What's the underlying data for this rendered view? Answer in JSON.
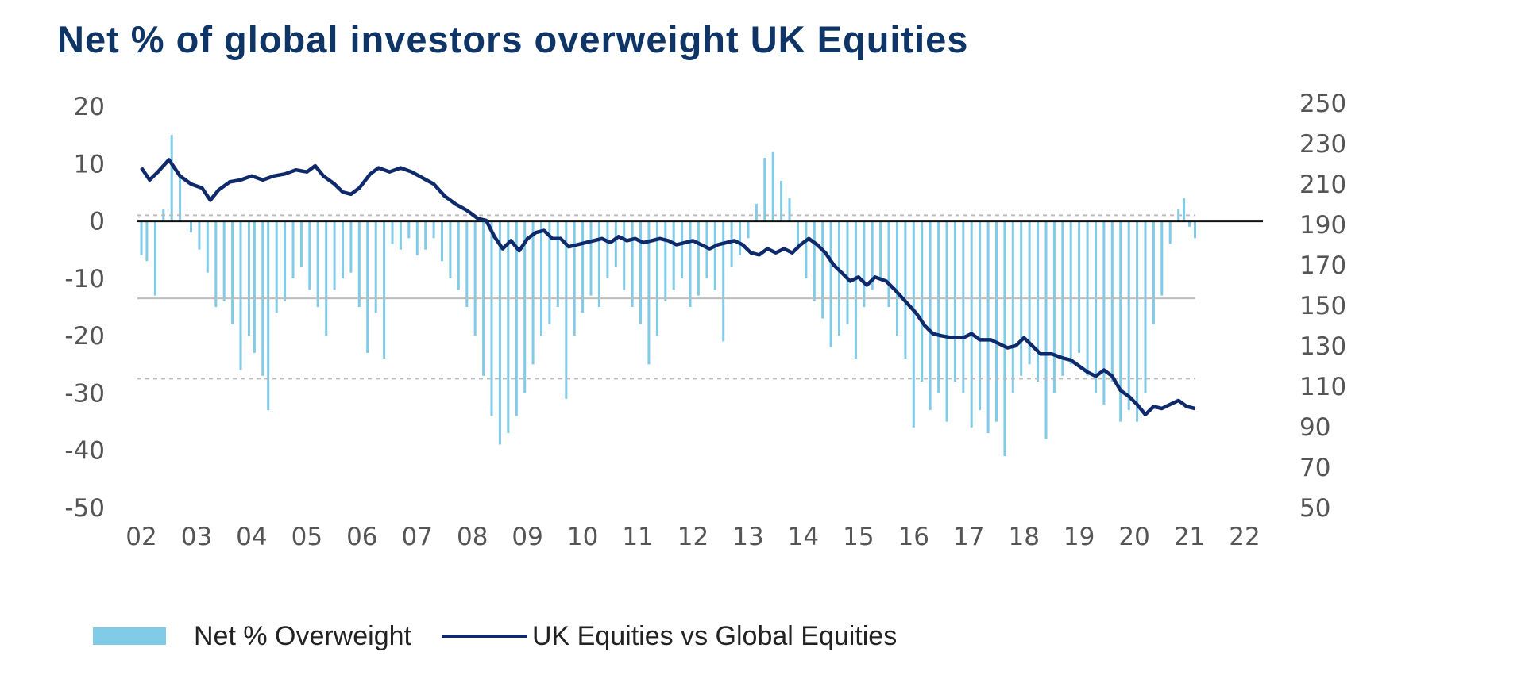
{
  "title": "Net % of global investors overweight UK Equities",
  "legend": {
    "bars_label": "Net % Overweight",
    "line_label": "UK Equities vs Global Equities"
  },
  "colors": {
    "title": "#0f3567",
    "bars": "#7fcbe8",
    "line": "#0f2a6b",
    "tick": "#555555"
  },
  "chart_data": {
    "type": "bar+line",
    "title": "Net % of global investors overweight UK Equities",
    "x_ticks": [
      "02",
      "03",
      "04",
      "05",
      "06",
      "07",
      "08",
      "09",
      "10",
      "11",
      "12",
      "13",
      "14",
      "15",
      "16",
      "17",
      "18",
      "19",
      "20",
      "21",
      "22"
    ],
    "xlim": [
      2002,
      2022
    ],
    "left_axis": {
      "ticks": [
        20,
        10,
        0,
        -10,
        -20,
        -30,
        -40,
        -50
      ],
      "ylim": [
        -50,
        20
      ]
    },
    "right_axis": {
      "ticks": [
        250,
        230,
        210,
        190,
        170,
        150,
        130,
        110,
        90,
        70,
        50
      ],
      "ylim": [
        50,
        250
      ]
    },
    "reference_lines": {
      "zero": 0,
      "solid": -13.5,
      "dashed_top": 1,
      "dashed_bottom": -27.5
    },
    "series": [
      {
        "name": "Net % Overweight",
        "type": "bar",
        "axis": "left",
        "points": [
          [
            2002.0,
            -6
          ],
          [
            2002.1,
            -7
          ],
          [
            2002.25,
            -13
          ],
          [
            2002.4,
            2
          ],
          [
            2002.55,
            15
          ],
          [
            2002.7,
            8
          ],
          [
            2002.9,
            -2
          ],
          [
            2003.05,
            -5
          ],
          [
            2003.2,
            -9
          ],
          [
            2003.35,
            -15
          ],
          [
            2003.5,
            -14
          ],
          [
            2003.65,
            -18
          ],
          [
            2003.8,
            -26
          ],
          [
            2003.95,
            -20
          ],
          [
            2004.05,
            -23
          ],
          [
            2004.2,
            -27
          ],
          [
            2004.3,
            -33
          ],
          [
            2004.45,
            -16
          ],
          [
            2004.6,
            -14
          ],
          [
            2004.75,
            -10
          ],
          [
            2004.9,
            -8
          ],
          [
            2005.05,
            -12
          ],
          [
            2005.2,
            -15
          ],
          [
            2005.35,
            -20
          ],
          [
            2005.5,
            -12
          ],
          [
            2005.65,
            -10
          ],
          [
            2005.8,
            -9
          ],
          [
            2005.95,
            -15
          ],
          [
            2006.1,
            -23
          ],
          [
            2006.25,
            -16
          ],
          [
            2006.4,
            -24
          ],
          [
            2006.55,
            -4
          ],
          [
            2006.7,
            -5
          ],
          [
            2006.85,
            -3
          ],
          [
            2007.0,
            -6
          ],
          [
            2007.15,
            -5
          ],
          [
            2007.3,
            -3
          ],
          [
            2007.45,
            -7
          ],
          [
            2007.6,
            -10
          ],
          [
            2007.75,
            -12
          ],
          [
            2007.9,
            -15
          ],
          [
            2008.05,
            -20
          ],
          [
            2008.2,
            -27
          ],
          [
            2008.35,
            -34
          ],
          [
            2008.5,
            -39
          ],
          [
            2008.65,
            -37
          ],
          [
            2008.8,
            -34
          ],
          [
            2008.95,
            -30
          ],
          [
            2009.1,
            -25
          ],
          [
            2009.25,
            -20
          ],
          [
            2009.4,
            -18
          ],
          [
            2009.55,
            -15
          ],
          [
            2009.7,
            -31
          ],
          [
            2009.85,
            -20
          ],
          [
            2010.0,
            -16
          ],
          [
            2010.15,
            -13
          ],
          [
            2010.3,
            -15
          ],
          [
            2010.45,
            -10
          ],
          [
            2010.6,
            -8
          ],
          [
            2010.75,
            -12
          ],
          [
            2010.9,
            -15
          ],
          [
            2011.05,
            -18
          ],
          [
            2011.2,
            -25
          ],
          [
            2011.35,
            -20
          ],
          [
            2011.5,
            -14
          ],
          [
            2011.65,
            -12
          ],
          [
            2011.8,
            -10
          ],
          [
            2011.95,
            -15
          ],
          [
            2012.1,
            -13
          ],
          [
            2012.25,
            -10
          ],
          [
            2012.4,
            -12
          ],
          [
            2012.55,
            -21
          ],
          [
            2012.7,
            -8
          ],
          [
            2012.85,
            -6
          ],
          [
            2013.0,
            -3
          ],
          [
            2013.15,
            3
          ],
          [
            2013.3,
            11
          ],
          [
            2013.45,
            12
          ],
          [
            2013.6,
            7
          ],
          [
            2013.75,
            4
          ],
          [
            2013.9,
            -5
          ],
          [
            2014.05,
            -10
          ],
          [
            2014.2,
            -14
          ],
          [
            2014.35,
            -17
          ],
          [
            2014.5,
            -22
          ],
          [
            2014.65,
            -20
          ],
          [
            2014.8,
            -18
          ],
          [
            2014.95,
            -24
          ],
          [
            2015.1,
            -15
          ],
          [
            2015.25,
            -12
          ],
          [
            2015.4,
            -10
          ],
          [
            2015.55,
            -15
          ],
          [
            2015.7,
            -20
          ],
          [
            2015.85,
            -24
          ],
          [
            2016.0,
            -36
          ],
          [
            2016.15,
            -28
          ],
          [
            2016.3,
            -33
          ],
          [
            2016.45,
            -30
          ],
          [
            2016.6,
            -35
          ],
          [
            2016.75,
            -28
          ],
          [
            2016.9,
            -30
          ],
          [
            2017.05,
            -36
          ],
          [
            2017.2,
            -33
          ],
          [
            2017.35,
            -37
          ],
          [
            2017.5,
            -35
          ],
          [
            2017.65,
            -41
          ],
          [
            2017.8,
            -30
          ],
          [
            2017.95,
            -27
          ],
          [
            2018.1,
            -25
          ],
          [
            2018.25,
            -28
          ],
          [
            2018.4,
            -38
          ],
          [
            2018.55,
            -30
          ],
          [
            2018.7,
            -27
          ],
          [
            2018.85,
            -25
          ],
          [
            2019.0,
            -23
          ],
          [
            2019.15,
            -27
          ],
          [
            2019.3,
            -30
          ],
          [
            2019.45,
            -32
          ],
          [
            2019.6,
            -28
          ],
          [
            2019.75,
            -35
          ],
          [
            2019.9,
            -33
          ],
          [
            2020.05,
            -35
          ],
          [
            2020.2,
            -30
          ],
          [
            2020.35,
            -18
          ],
          [
            2020.5,
            -13
          ],
          [
            2020.65,
            -4
          ],
          [
            2020.8,
            2
          ],
          [
            2020.9,
            4
          ],
          [
            2021.0,
            -1
          ],
          [
            2021.1,
            -3
          ]
        ]
      },
      {
        "name": "UK Equities vs Global Equities",
        "type": "line",
        "axis": "right",
        "points": [
          [
            2002.0,
            218
          ],
          [
            2002.15,
            212
          ],
          [
            2002.3,
            216
          ],
          [
            2002.5,
            222
          ],
          [
            2002.7,
            214
          ],
          [
            2002.9,
            210
          ],
          [
            2003.1,
            208
          ],
          [
            2003.25,
            202
          ],
          [
            2003.4,
            207
          ],
          [
            2003.6,
            211
          ],
          [
            2003.8,
            212
          ],
          [
            2004.0,
            214
          ],
          [
            2004.2,
            212
          ],
          [
            2004.4,
            214
          ],
          [
            2004.6,
            215
          ],
          [
            2004.8,
            217
          ],
          [
            2005.0,
            216
          ],
          [
            2005.15,
            219
          ],
          [
            2005.3,
            214
          ],
          [
            2005.5,
            210
          ],
          [
            2005.65,
            206
          ],
          [
            2005.8,
            205
          ],
          [
            2005.95,
            208
          ],
          [
            2006.15,
            215
          ],
          [
            2006.3,
            218
          ],
          [
            2006.5,
            216
          ],
          [
            2006.7,
            218
          ],
          [
            2006.9,
            216
          ],
          [
            2007.1,
            213
          ],
          [
            2007.3,
            210
          ],
          [
            2007.5,
            204
          ],
          [
            2007.7,
            200
          ],
          [
            2007.9,
            197
          ],
          [
            2008.1,
            193
          ],
          [
            2008.25,
            192
          ],
          [
            2008.4,
            184
          ],
          [
            2008.55,
            178
          ],
          [
            2008.7,
            182
          ],
          [
            2008.85,
            177
          ],
          [
            2009.0,
            183
          ],
          [
            2009.15,
            186
          ],
          [
            2009.3,
            187
          ],
          [
            2009.45,
            183
          ],
          [
            2009.6,
            183
          ],
          [
            2009.75,
            179
          ],
          [
            2009.9,
            180
          ],
          [
            2010.05,
            181
          ],
          [
            2010.2,
            182
          ],
          [
            2010.35,
            183
          ],
          [
            2010.5,
            181
          ],
          [
            2010.65,
            184
          ],
          [
            2010.8,
            182
          ],
          [
            2010.95,
            183
          ],
          [
            2011.1,
            181
          ],
          [
            2011.25,
            182
          ],
          [
            2011.4,
            183
          ],
          [
            2011.55,
            182
          ],
          [
            2011.7,
            180
          ],
          [
            2011.85,
            181
          ],
          [
            2012.0,
            182
          ],
          [
            2012.15,
            180
          ],
          [
            2012.3,
            178
          ],
          [
            2012.45,
            180
          ],
          [
            2012.6,
            181
          ],
          [
            2012.75,
            182
          ],
          [
            2012.9,
            180
          ],
          [
            2013.05,
            176
          ],
          [
            2013.2,
            175
          ],
          [
            2013.35,
            178
          ],
          [
            2013.5,
            176
          ],
          [
            2013.65,
            178
          ],
          [
            2013.8,
            176
          ],
          [
            2013.95,
            180
          ],
          [
            2014.1,
            183
          ],
          [
            2014.25,
            180
          ],
          [
            2014.4,
            176
          ],
          [
            2014.55,
            170
          ],
          [
            2014.7,
            166
          ],
          [
            2014.85,
            162
          ],
          [
            2015.0,
            164
          ],
          [
            2015.15,
            160
          ],
          [
            2015.3,
            164
          ],
          [
            2015.5,
            162
          ],
          [
            2015.65,
            158
          ],
          [
            2015.85,
            152
          ],
          [
            2016.05,
            146
          ],
          [
            2016.2,
            140
          ],
          [
            2016.35,
            136
          ],
          [
            2016.5,
            135
          ],
          [
            2016.7,
            134
          ],
          [
            2016.9,
            134
          ],
          [
            2017.05,
            136
          ],
          [
            2017.2,
            133
          ],
          [
            2017.4,
            133
          ],
          [
            2017.55,
            131
          ],
          [
            2017.7,
            129
          ],
          [
            2017.85,
            130
          ],
          [
            2018.0,
            134
          ],
          [
            2018.15,
            130
          ],
          [
            2018.3,
            126
          ],
          [
            2018.5,
            126
          ],
          [
            2018.7,
            124
          ],
          [
            2018.85,
            123
          ],
          [
            2019.0,
            120
          ],
          [
            2019.15,
            117
          ],
          [
            2019.3,
            115
          ],
          [
            2019.45,
            118
          ],
          [
            2019.6,
            115
          ],
          [
            2019.75,
            108
          ],
          [
            2019.9,
            105
          ],
          [
            2020.05,
            101
          ],
          [
            2020.2,
            96
          ],
          [
            2020.35,
            100
          ],
          [
            2020.5,
            99
          ],
          [
            2020.65,
            101
          ],
          [
            2020.8,
            103
          ],
          [
            2020.95,
            100
          ],
          [
            2021.1,
            99
          ]
        ]
      }
    ]
  }
}
